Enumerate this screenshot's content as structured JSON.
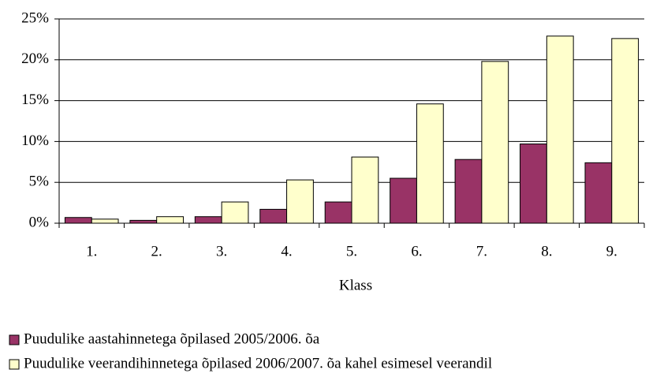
{
  "chart_data": {
    "type": "bar",
    "categories": [
      "1.",
      "2.",
      "3.",
      "4.",
      "5.",
      "6.",
      "7.",
      "8.",
      "9."
    ],
    "series": [
      {
        "name": "Puudulike aastahinnetega õpilased 2005/2006. õa",
        "color": "#993366",
        "values": [
          0.7,
          0.35,
          0.8,
          1.7,
          2.6,
          5.5,
          7.8,
          9.7,
          7.4
        ]
      },
      {
        "name": "Puudulike veerandihinnetega õpilased 2006/2007. õa kahel esimesel veerandil",
        "color": "#ffffcc",
        "values": [
          0.5,
          0.8,
          2.6,
          5.3,
          8.1,
          14.6,
          19.8,
          22.9,
          22.6
        ]
      }
    ],
    "xlabel": "Klass",
    "ylim": [
      0,
      25
    ],
    "yticks": [
      {
        "value": 0,
        "label": "0%"
      },
      {
        "value": 5,
        "label": "5%"
      },
      {
        "value": 10,
        "label": "10%"
      },
      {
        "value": 15,
        "label": "15%"
      },
      {
        "value": 20,
        "label": "20%"
      },
      {
        "value": 25,
        "label": "25%"
      }
    ],
    "grid": true,
    "legend": "bottom"
  }
}
